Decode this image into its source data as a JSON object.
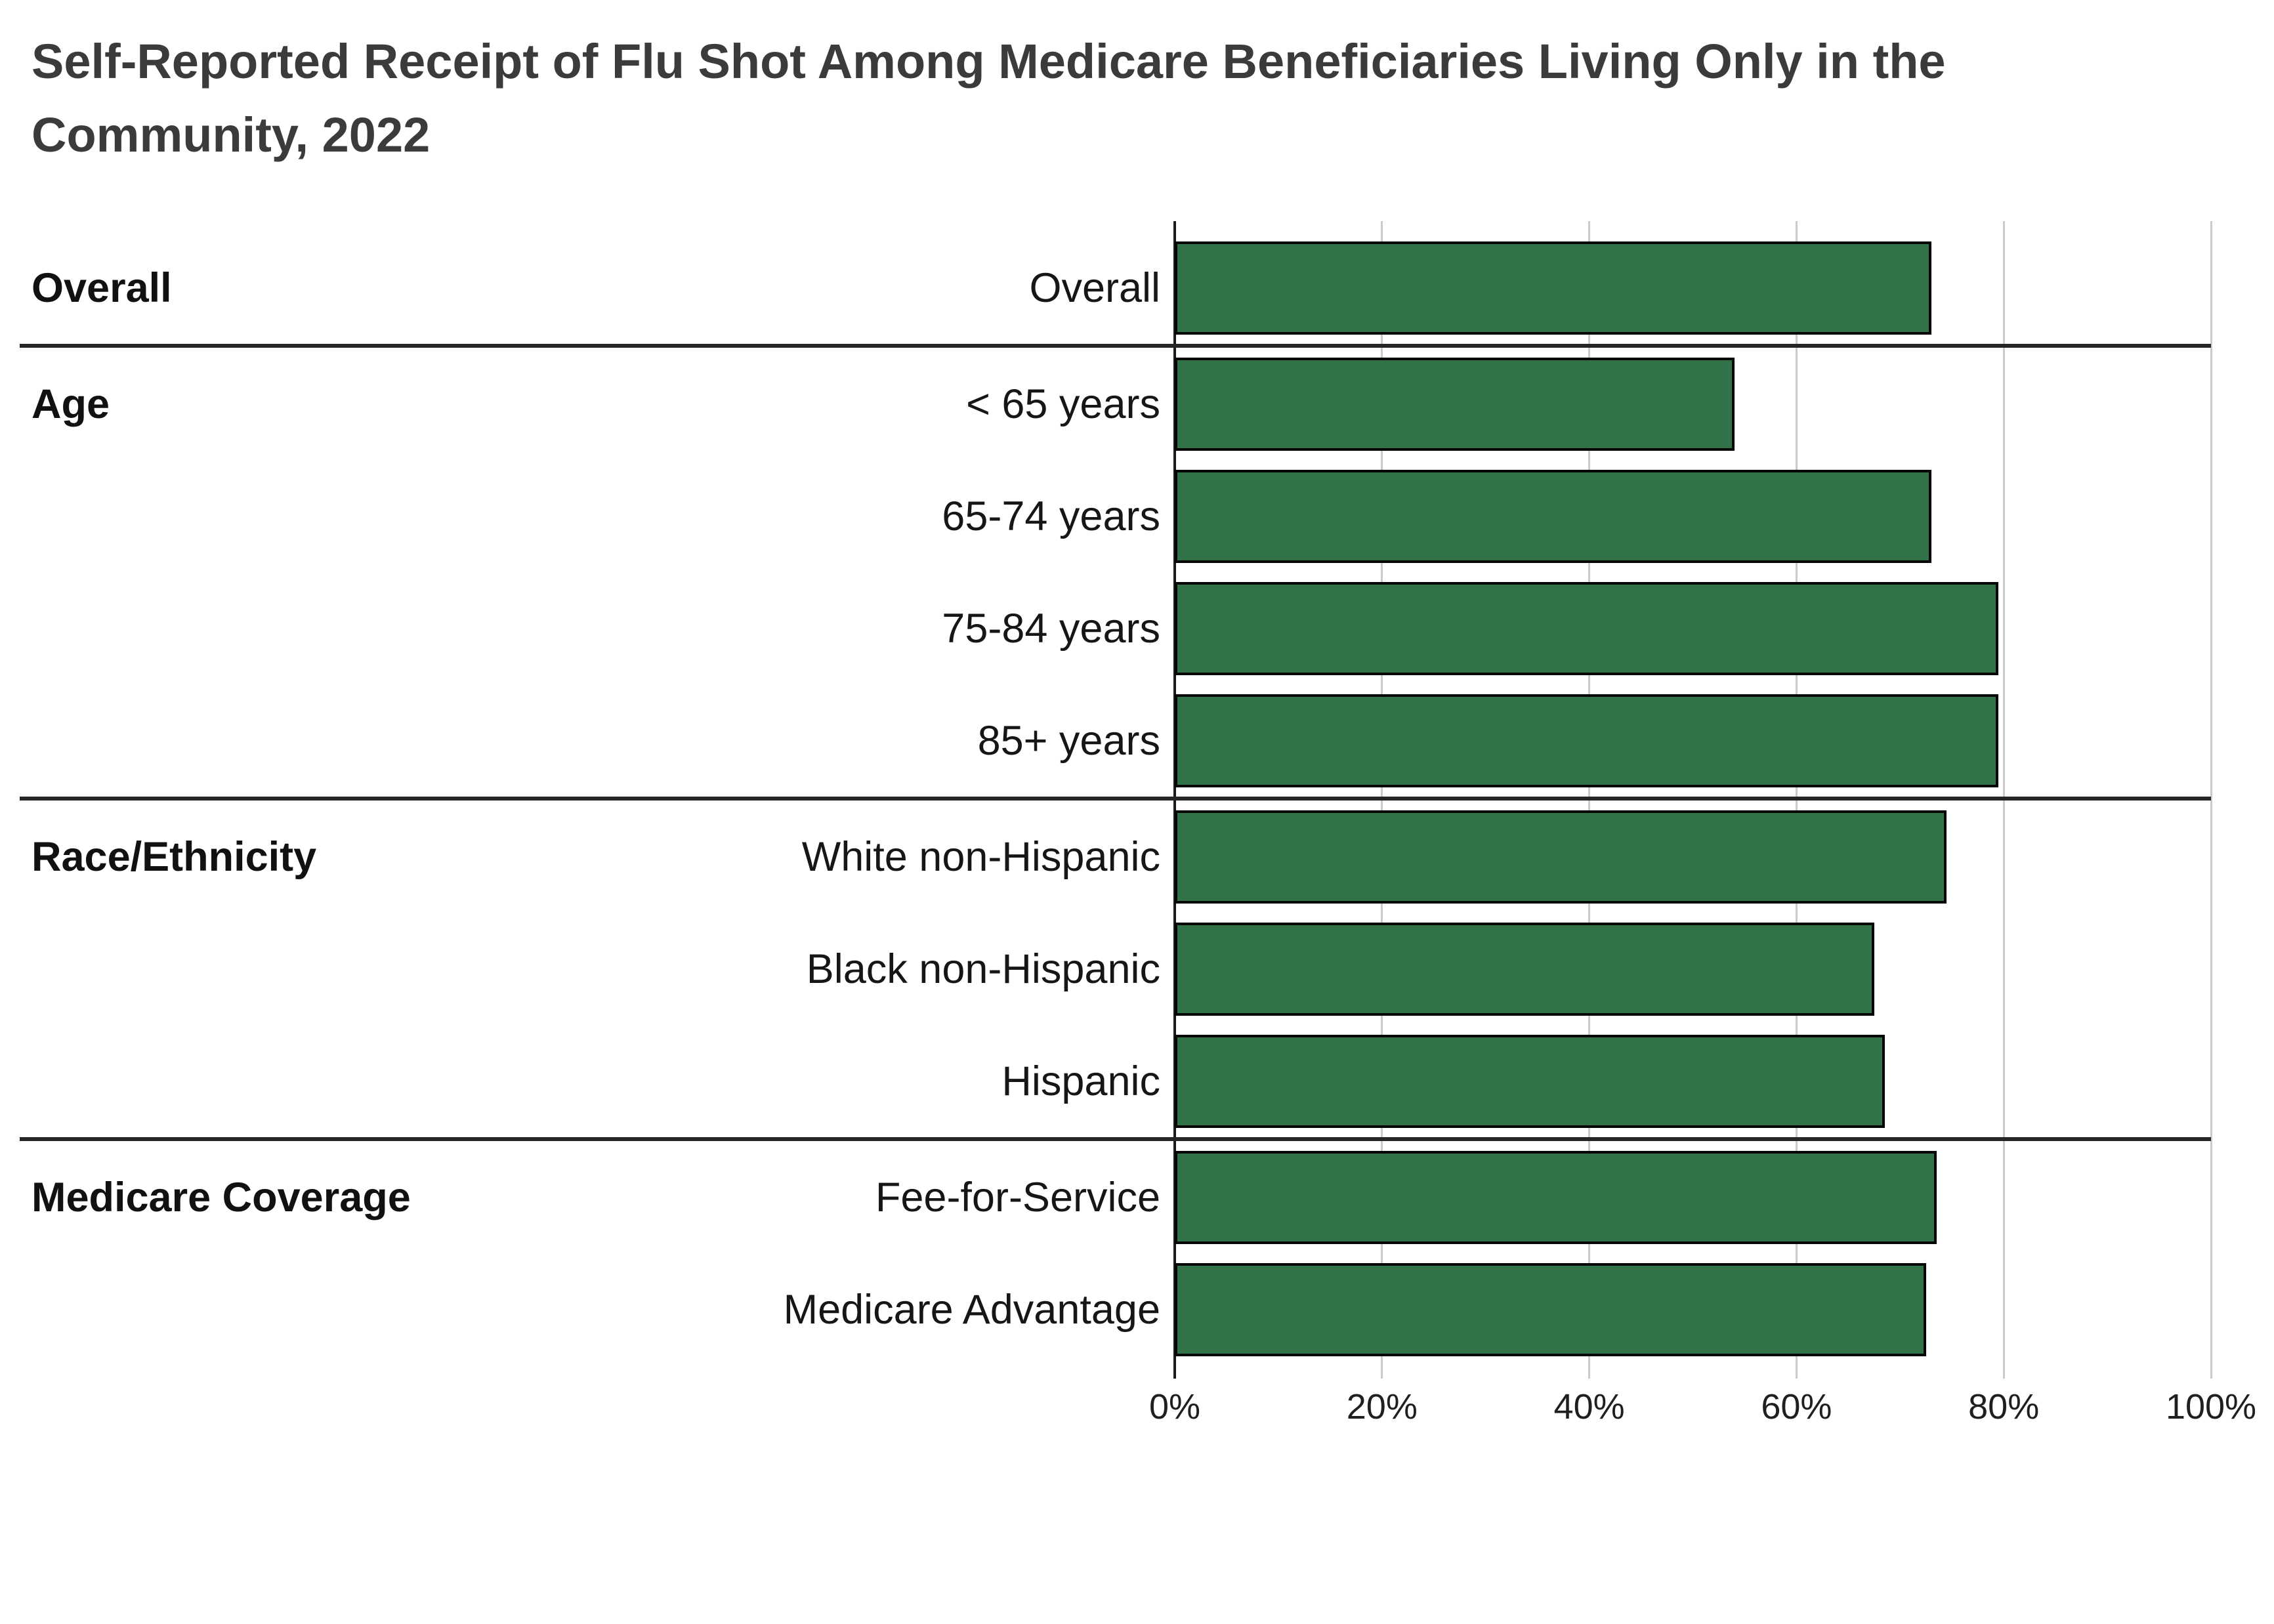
{
  "title": {
    "line1": "Self-Reported Receipt of Flu Shot Among Medicare Beneficiaries Living Only in the",
    "line2": "Community, 2022",
    "full_text": "Self-Reported Receipt of Flu Shot Among Medicare Beneficiaries Living Only in the Community, 2022"
  },
  "colors": {
    "background": "#ffffff",
    "bar_fill": "#317248",
    "bar_border": "#060606",
    "gridline": "#cbcbcb",
    "axis_line": "#1b1b1b",
    "section_separator": "#262626",
    "title_text": "#3b3b3b",
    "label_text": "#161616",
    "tick_text": "#1f1f1f"
  },
  "chart_data": {
    "type": "bar",
    "orientation": "horizontal",
    "unit": "percent",
    "xlim": [
      0,
      100
    ],
    "grid": true,
    "legend": "none",
    "x_ticks": [
      "0%",
      "20%",
      "40%",
      "60%",
      "80%",
      "100%"
    ],
    "x_tick_values": [
      0,
      20,
      40,
      60,
      80,
      100
    ],
    "bar_color": "#317248",
    "groups": [
      {
        "label": "Overall",
        "rows": [
          {
            "label": "Overall",
            "value": 73
          }
        ]
      },
      {
        "label": "Age",
        "rows": [
          {
            "label": "< 65 years",
            "value": 54
          },
          {
            "label": "65-74 years",
            "value": 73
          },
          {
            "label": "75-84 years",
            "value": 79.5
          },
          {
            "label": "85+ years",
            "value": 79.5
          }
        ]
      },
      {
        "label": "Race/Ethnicity",
        "rows": [
          {
            "label": "White non-Hispanic",
            "value": 74.5
          },
          {
            "label": "Black non-Hispanic",
            "value": 67.5
          },
          {
            "label": "Hispanic",
            "value": 68.5
          }
        ]
      },
      {
        "label": "Medicare Coverage",
        "rows": [
          {
            "label": "Fee-for-Service",
            "value": 73.5
          },
          {
            "label": "Medicare Advantage",
            "value": 72.5
          }
        ]
      }
    ]
  }
}
